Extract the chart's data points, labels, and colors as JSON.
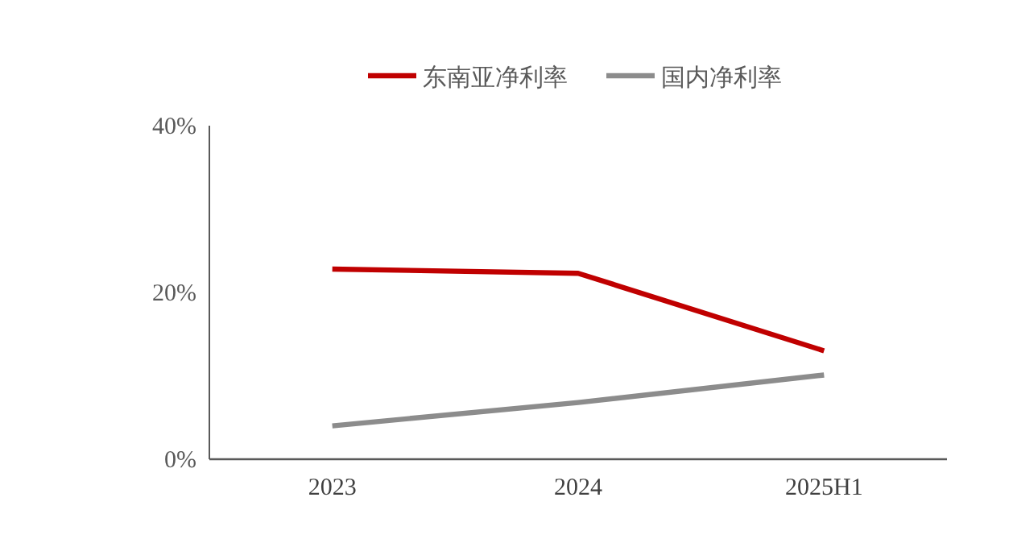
{
  "chart_data": {
    "type": "line",
    "categories": [
      "2023",
      "2024",
      "2025H1"
    ],
    "series": [
      {
        "name": "东南亚净利率",
        "color": "#c00000",
        "values": [
          22.8,
          22.3,
          13.0
        ]
      },
      {
        "name": "国内净利率",
        "color": "#8c8c8c",
        "values": [
          4.0,
          6.8,
          10.1
        ]
      }
    ],
    "ylim": [
      0,
      40
    ],
    "yticks": [
      {
        "value": 0,
        "label": "0%"
      },
      {
        "value": 20,
        "label": "20%"
      },
      {
        "value": 40,
        "label": "40%"
      }
    ],
    "grid": false,
    "legend": "top",
    "marker": "none",
    "line_style": "solid"
  }
}
